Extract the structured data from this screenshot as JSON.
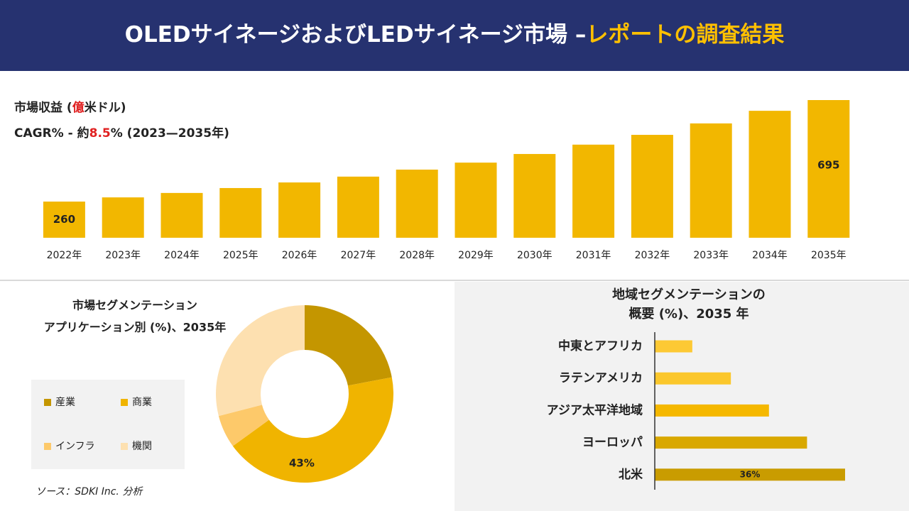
{
  "header": {
    "title": "OLEDサイネージおよびLEDサイネージ市場 –",
    "title_highlight": "レポートの調査結果"
  },
  "chart_data": [
    {
      "type": "bar",
      "title": [
        "市場収益 (",
        "億",
        "米ドル)"
      ],
      "subtitle": [
        "CAGR% - 約",
        "8.5",
        "% (2023—2035年)"
      ],
      "categories": [
        "2022年",
        "2023年",
        "2024年",
        "2025年",
        "2026年",
        "2027年",
        "2028年",
        "2029年",
        "2030年",
        "2031年",
        "2032年",
        "2033年",
        "2034年",
        "2035年"
      ],
      "values": [
        260,
        278,
        297,
        318,
        342,
        367,
        397,
        427,
        464,
        504,
        546,
        595,
        649,
        695
      ],
      "value_labels": [
        "260",
        null,
        null,
        null,
        null,
        null,
        null,
        null,
        null,
        null,
        null,
        null,
        null,
        "695"
      ],
      "color": "#f2b700",
      "ylim": [
        105,
        695
      ]
    },
    {
      "type": "donut",
      "title": [
        "市場セグメンテーション",
        "アプリケーション別 (%)、2035年"
      ],
      "categories": [
        "産業",
        "商業",
        "インフラ",
        "機関"
      ],
      "values": [
        22,
        43,
        6,
        29
      ],
      "value_labels": [
        null,
        "43%",
        null,
        null
      ],
      "colors": [
        "#c49600",
        "#f0b400",
        "#fdc96a",
        "#fde0b0"
      ]
    },
    {
      "type": "hbar",
      "title": [
        "地域セグメンテーションの",
        "概要 (%)、2035 年"
      ],
      "categories": [
        "中東とアフリカ",
        "ラテンアメリカ",
        "アジア太平洋地域",
        "ヨーロッパ",
        "北米"
      ],
      "values": [
        7.1,
        14.4,
        21.6,
        28.8,
        36
      ],
      "value_labels": [
        null,
        null,
        null,
        null,
        "36%"
      ],
      "colors": [
        "#fdc934",
        "#fbc72c",
        "#f5b800",
        "#d9a800",
        "#c99c00"
      ],
      "xlim": [
        0,
        36
      ]
    }
  ],
  "source": "ソース：SDKI Inc. 分析"
}
